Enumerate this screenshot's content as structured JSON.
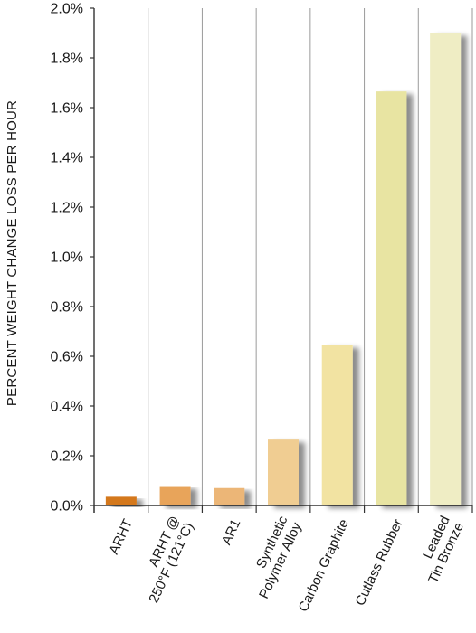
{
  "chart_data": {
    "type": "bar",
    "title": "",
    "xlabel": "",
    "ylabel": "PERCENT WEIGHT CHANGE LOSS PER HOUR",
    "ylim": [
      0,
      2.0
    ],
    "y_tick_values": [
      0,
      0.2,
      0.4,
      0.6,
      0.8,
      1.0,
      1.2,
      1.4,
      1.6,
      1.8,
      2.0
    ],
    "y_tick_labels": [
      "0.0%",
      "0.2%",
      "0.4%",
      "0.6%",
      "0.8%",
      "1.0%",
      "1.2%",
      "1.4%",
      "1.6%",
      "1.8%",
      "2.0%"
    ],
    "grid": "vertical category separators",
    "legend": "none",
    "categories": [
      [
        "ARHT"
      ],
      [
        "ARHT @",
        "250°F (121°C)"
      ],
      [
        "AR1"
      ],
      [
        "Synthetic",
        "Polymer Alloy"
      ],
      [
        "Carbon Graphite"
      ],
      [
        "Cutlass Rubber"
      ],
      [
        "Leaded",
        "Tin Bronze"
      ]
    ],
    "values": [
      0.035,
      0.078,
      0.07,
      0.265,
      0.645,
      1.665,
      1.9
    ],
    "colors": [
      "#d4781f",
      "#e8a45a",
      "#ecb677",
      "#f0cd92",
      "#f2e3a2",
      "#e8e4a2",
      "#efedc4"
    ]
  }
}
